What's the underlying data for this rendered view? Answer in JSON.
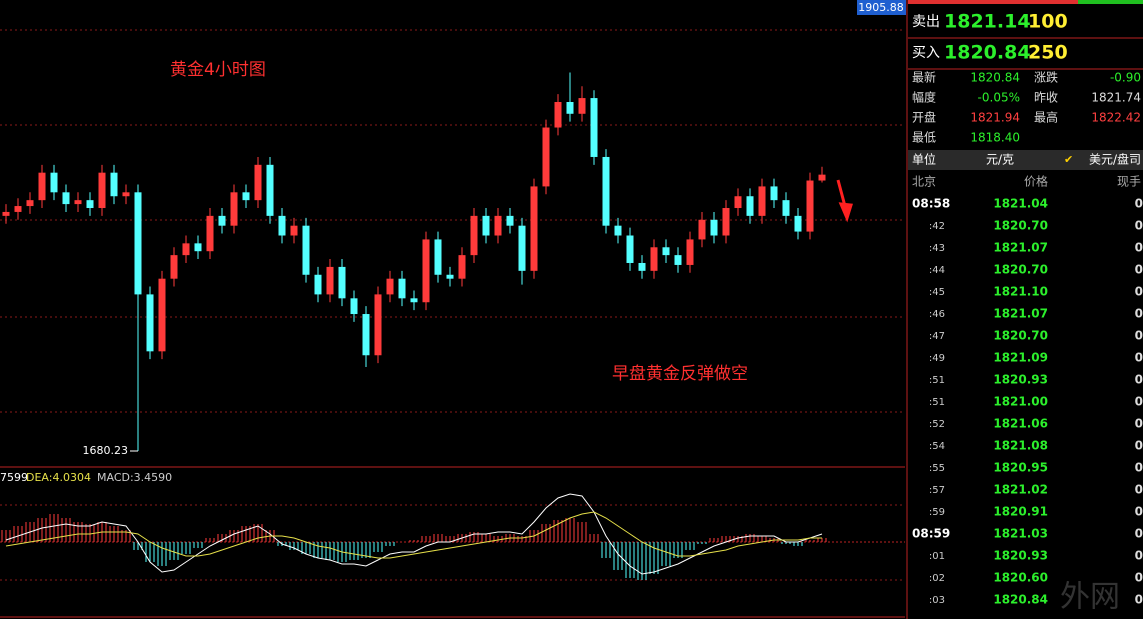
{
  "chart_data": {
    "type": "candlestick",
    "title": "黄金4小时图",
    "annotation": "早盘黄金反弹做空",
    "ylim": [
      1673.1,
      1905.88
    ],
    "up_color": "#ff3b3b",
    "down_color": "#54ffff",
    "open": [
      1800,
      1802,
      1805,
      1808,
      1822,
      1812,
      1806,
      1808,
      1804,
      1822,
      1810,
      1812,
      1760,
      1731,
      1768,
      1780,
      1786,
      1782,
      1800,
      1795,
      1812,
      1808,
      1826,
      1800,
      1790,
      1795,
      1770,
      1760,
      1774,
      1758,
      1750,
      1729,
      1760,
      1768,
      1758,
      1756,
      1788,
      1770,
      1768,
      1780,
      1800,
      1790,
      1800,
      1795,
      1772,
      1815,
      1845,
      1858,
      1852,
      1860,
      1830,
      1795,
      1790,
      1776,
      1772,
      1784,
      1780,
      1775,
      1788,
      1798,
      1790,
      1804,
      1810,
      1800,
      1815,
      1808,
      1800,
      1792,
      1818
    ],
    "high": [
      1806,
      1809,
      1812,
      1826,
      1826,
      1816,
      1812,
      1812,
      1826,
      1826,
      1816,
      1816,
      1764,
      1772,
      1784,
      1790,
      1790,
      1804,
      1804,
      1816,
      1816,
      1830,
      1830,
      1804,
      1799,
      1799,
      1774,
      1778,
      1778,
      1762,
      1754,
      1764,
      1772,
      1772,
      1762,
      1792,
      1792,
      1774,
      1784,
      1804,
      1804,
      1804,
      1804,
      1799,
      1819,
      1849,
      1862,
      1873,
      1866,
      1864,
      1834,
      1799,
      1794,
      1780,
      1788,
      1788,
      1784,
      1792,
      1802,
      1802,
      1808,
      1814,
      1814,
      1819,
      1819,
      1812,
      1804,
      1822,
      1825
    ],
    "low": [
      1796,
      1798,
      1801,
      1804,
      1808,
      1802,
      1802,
      1800,
      1800,
      1806,
      1806,
      1680.23,
      1727,
      1727,
      1764,
      1776,
      1778,
      1778,
      1791,
      1791,
      1804,
      1804,
      1796,
      1786,
      1786,
      1766,
      1756,
      1756,
      1754,
      1746,
      1723,
      1725,
      1756,
      1754,
      1752,
      1752,
      1766,
      1764,
      1764,
      1776,
      1786,
      1786,
      1791,
      1765,
      1768,
      1811,
      1841,
      1848,
      1848,
      1826,
      1791,
      1786,
      1772,
      1768,
      1768,
      1776,
      1771,
      1771,
      1784,
      1786,
      1786,
      1800,
      1796,
      1796,
      1804,
      1796,
      1788,
      1788,
      1817
    ],
    "close": [
      1802,
      1805,
      1808,
      1822,
      1812,
      1806,
      1808,
      1804,
      1822,
      1810,
      1812,
      1760,
      1731,
      1768,
      1780,
      1786,
      1782,
      1800,
      1795,
      1812,
      1808,
      1826,
      1800,
      1790,
      1795,
      1770,
      1760,
      1774,
      1758,
      1750,
      1729,
      1760,
      1768,
      1758,
      1756,
      1788,
      1770,
      1768,
      1780,
      1800,
      1790,
      1800,
      1795,
      1772,
      1815,
      1845,
      1858,
      1852,
      1860,
      1830,
      1795,
      1790,
      1776,
      1772,
      1784,
      1780,
      1775,
      1788,
      1798,
      1790,
      1804,
      1810,
      1800,
      1815,
      1808,
      1800,
      1792,
      1818,
      1821
    ],
    "macd": {
      "labels": [
        "7599",
        "DEA:4.0304",
        "MACD:3.4590"
      ],
      "ylim": [
        -29,
        26
      ],
      "hist": [
        6,
        8,
        10,
        12,
        14,
        12,
        10,
        9,
        10,
        8,
        6,
        -4,
        -10,
        -12,
        -9,
        -6,
        -3,
        2,
        4,
        6,
        8,
        9,
        6,
        -2,
        -4,
        -6,
        -8,
        -9,
        -10,
        -9,
        -8,
        -5,
        -2,
        0,
        1,
        3,
        4,
        3,
        4,
        5,
        4,
        3,
        4,
        3,
        6,
        9,
        11,
        12,
        10,
        4,
        -8,
        -14,
        -18,
        -19,
        -16,
        -12,
        -8,
        -4,
        -1,
        2,
        3,
        3,
        4,
        3,
        2,
        -1,
        -2,
        1,
        2
      ],
      "dif": [
        1,
        3,
        5,
        7,
        8,
        9,
        8,
        8,
        10,
        9,
        8,
        0,
        -10,
        -15,
        -14,
        -10,
        -6,
        -2,
        1,
        4,
        6,
        8,
        4,
        -1,
        -3,
        -6,
        -8,
        -9,
        -11,
        -11,
        -12,
        -9,
        -6,
        -5,
        -5,
        -2,
        0,
        0,
        2,
        4,
        4,
        5,
        5,
        4,
        10,
        17,
        22,
        24,
        23,
        15,
        3,
        -6,
        -12,
        -16,
        -15,
        -13,
        -11,
        -8,
        -5,
        -2,
        0,
        2,
        3,
        3,
        3,
        0,
        0,
        2,
        4
      ],
      "dea": [
        -2,
        -1,
        0,
        1,
        2,
        3,
        4,
        4,
        5,
        5,
        5,
        4,
        0,
        -3,
        -5,
        -7,
        -7,
        -6,
        -4,
        -2,
        0,
        2,
        3,
        3,
        2,
        0,
        -2,
        -3,
        -5,
        -6,
        -7,
        -8,
        -8,
        -7,
        -6,
        -5,
        -4,
        -3,
        -2,
        -1,
        0,
        1,
        2,
        2,
        3,
        6,
        9,
        12,
        14,
        15,
        12,
        8,
        4,
        0,
        -3,
        -5,
        -7,
        -7,
        -6,
        -5,
        -4,
        -2,
        -1,
        0,
        1,
        1,
        1,
        2,
        2
      ]
    }
  },
  "quote": {
    "sell": [
      "卖出",
      "1821.14",
      "100"
    ],
    "buy": [
      "买入",
      "1820.84",
      "250"
    ],
    "rows": [
      [
        "最新",
        "1820.84",
        "涨跌",
        "-0.90"
      ],
      [
        "幅度",
        "-0.05%",
        "昨收",
        "1821.74"
      ],
      [
        "开盘",
        "1821.94",
        "最高",
        "1822.42"
      ],
      [
        "最低",
        "1818.40"
      ]
    ],
    "unit": [
      "单位",
      "元/克",
      "美元/盘司"
    ],
    "head": [
      "北京",
      "价格",
      "现手"
    ],
    "ticks": [
      [
        "08:58",
        "1821.04",
        "0"
      ],
      [
        ":42",
        "1820.70",
        "0"
      ],
      [
        ":43",
        "1821.07",
        "0"
      ],
      [
        ":44",
        "1820.70",
        "0"
      ],
      [
        ":45",
        "1821.10",
        "0"
      ],
      [
        ":46",
        "1821.07",
        "0"
      ],
      [
        ":47",
        "1820.70",
        "0"
      ],
      [
        ":49",
        "1821.09",
        "0"
      ],
      [
        ":51",
        "1820.93",
        "0"
      ],
      [
        ":51",
        "1821.00",
        "0"
      ],
      [
        ":52",
        "1821.06",
        "0"
      ],
      [
        ":54",
        "1821.08",
        "0"
      ],
      [
        ":55",
        "1820.95",
        "0"
      ],
      [
        ":57",
        "1821.02",
        "0"
      ],
      [
        ":59",
        "1820.91",
        "0"
      ],
      [
        "08:59",
        "1821.03",
        "0"
      ],
      [
        ":01",
        "1820.93",
        "0"
      ],
      [
        ":02",
        "1820.60",
        "0"
      ],
      [
        ":03",
        "1820.84",
        "0"
      ]
    ]
  },
  "watermark": "外网"
}
